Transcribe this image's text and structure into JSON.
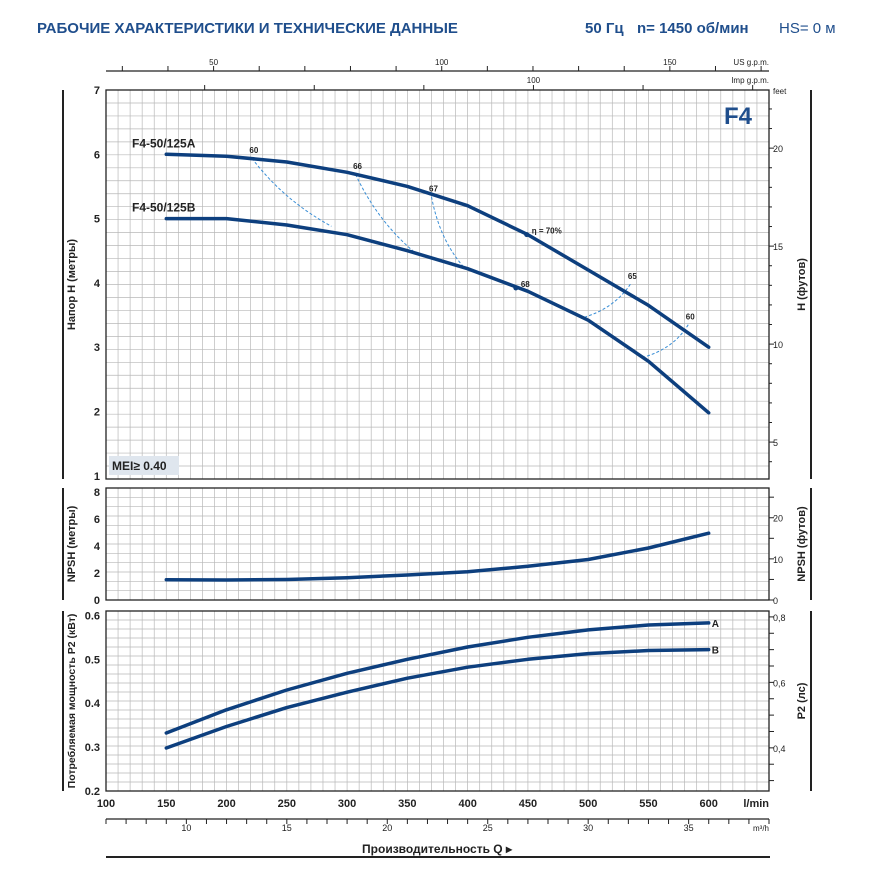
{
  "header": {
    "title": "РАБОЧИЕ ХАРАКТЕРИСТИКИ И ТЕХНИЧЕСКИЕ ДАННЫЕ",
    "frequency": "50 Гц",
    "speed": "n= 1450 об/мин",
    "hs": "HS= 0 м"
  },
  "colors": {
    "curve": "#0d3f7e",
    "iso": "#3b8fd6",
    "title": "#1f4e8c",
    "grid": "#b8b8b8",
    "mei_bg": "#dfe6ee"
  },
  "chart_data": [
    {
      "type": "line",
      "id": "head",
      "badge": "F4",
      "mei": "MEI≥ 0.40",
      "ylabel": "Напор H (метры)",
      "ylabel_right": "H (футов)",
      "ylabel_right_unit": "feet",
      "ylim": [
        0.95,
        7
      ],
      "yticks": [
        1,
        2,
        3,
        4,
        5,
        6,
        7
      ],
      "yticks_right_ft": [
        5,
        10,
        15,
        20
      ],
      "series": [
        {
          "name": "F4-50/125A",
          "x": [
            150,
            200,
            250,
            300,
            350,
            400,
            450,
            500,
            550,
            600
          ],
          "y": [
            6.0,
            5.97,
            5.88,
            5.72,
            5.5,
            5.2,
            4.75,
            4.2,
            3.65,
            3.0
          ]
        },
        {
          "name": "F4-50/125B",
          "x": [
            150,
            200,
            250,
            300,
            350,
            400,
            450,
            500,
            550,
            600
          ],
          "y": [
            5.0,
            5.0,
            4.9,
            4.75,
            4.5,
            4.22,
            3.87,
            3.42,
            2.78,
            1.98
          ]
        }
      ],
      "efficiency_lines": [
        {
          "label": "60",
          "from": [
            221,
            5.94
          ],
          "to": [
            287,
            4.88
          ]
        },
        {
          "label": "66",
          "from": [
            307,
            5.69
          ],
          "to": [
            357,
            4.46
          ]
        },
        {
          "label": "67",
          "from": [
            370,
            5.34
          ],
          "to": [
            397,
            4.24
          ]
        },
        {
          "label": "65",
          "from": [
            535,
            3.98
          ],
          "to": [
            494,
            3.45
          ]
        },
        {
          "label": "60",
          "from": [
            583,
            3.35
          ],
          "to": [
            545,
            2.84
          ]
        }
      ],
      "efficiency_markers": [
        {
          "label": "η = 70%",
          "x": 449,
          "y": 4.75
        },
        {
          "label": "68",
          "x": 440,
          "y": 3.92
        }
      ]
    },
    {
      "type": "line",
      "id": "npsh",
      "ylabel": "NPSH (метры)",
      "ylabel_right": "NPSH (футов)",
      "ylim": [
        0,
        8.3
      ],
      "yticks": [
        0,
        2,
        4,
        6,
        8
      ],
      "yticks_right_ft": [
        0,
        10,
        20
      ],
      "series": [
        {
          "name": "NPSH",
          "x": [
            150,
            200,
            250,
            300,
            350,
            400,
            450,
            500,
            550,
            600
          ],
          "y": [
            1.5,
            1.48,
            1.52,
            1.65,
            1.85,
            2.1,
            2.5,
            3.0,
            3.85,
            4.95
          ]
        }
      ]
    },
    {
      "type": "line",
      "id": "power",
      "ylabel": "Потребляемая мощность P2 (кВт)",
      "ylabel_right": "P2 (лс)",
      "ylim": [
        0.2,
        0.61
      ],
      "yticks": [
        0.2,
        0.3,
        0.4,
        0.5,
        0.6
      ],
      "yticks_right_hp": [
        "0,4",
        "0,6",
        "0,8"
      ],
      "series": [
        {
          "name": "A",
          "x": [
            150,
            200,
            250,
            300,
            350,
            400,
            450,
            500,
            550,
            600
          ],
          "y": [
            0.332,
            0.385,
            0.43,
            0.468,
            0.5,
            0.528,
            0.55,
            0.567,
            0.578,
            0.583
          ]
        },
        {
          "name": "B",
          "x": [
            150,
            200,
            250,
            300,
            350,
            400,
            450,
            500,
            550,
            600
          ],
          "y": [
            0.298,
            0.347,
            0.39,
            0.425,
            0.457,
            0.482,
            0.5,
            0.513,
            0.52,
            0.522
          ]
        }
      ]
    }
  ],
  "x_axis": {
    "xlim": [
      100,
      650
    ],
    "ticks_lmin": [
      100,
      150,
      200,
      250,
      300,
      350,
      400,
      450,
      500,
      550,
      600
    ],
    "unit_lmin": "l/min",
    "ticks_m3h": [
      10,
      15,
      20,
      25,
      30,
      35
    ],
    "unit_m3h": "m³/h",
    "ticks_usgpm": [
      50,
      100,
      150
    ],
    "unit_usgpm": "US g.p.m.",
    "ticks_impgpm": [
      100
    ],
    "unit_impgpm": "Imp g.p.m.",
    "label": "Производительность Q ▸"
  }
}
